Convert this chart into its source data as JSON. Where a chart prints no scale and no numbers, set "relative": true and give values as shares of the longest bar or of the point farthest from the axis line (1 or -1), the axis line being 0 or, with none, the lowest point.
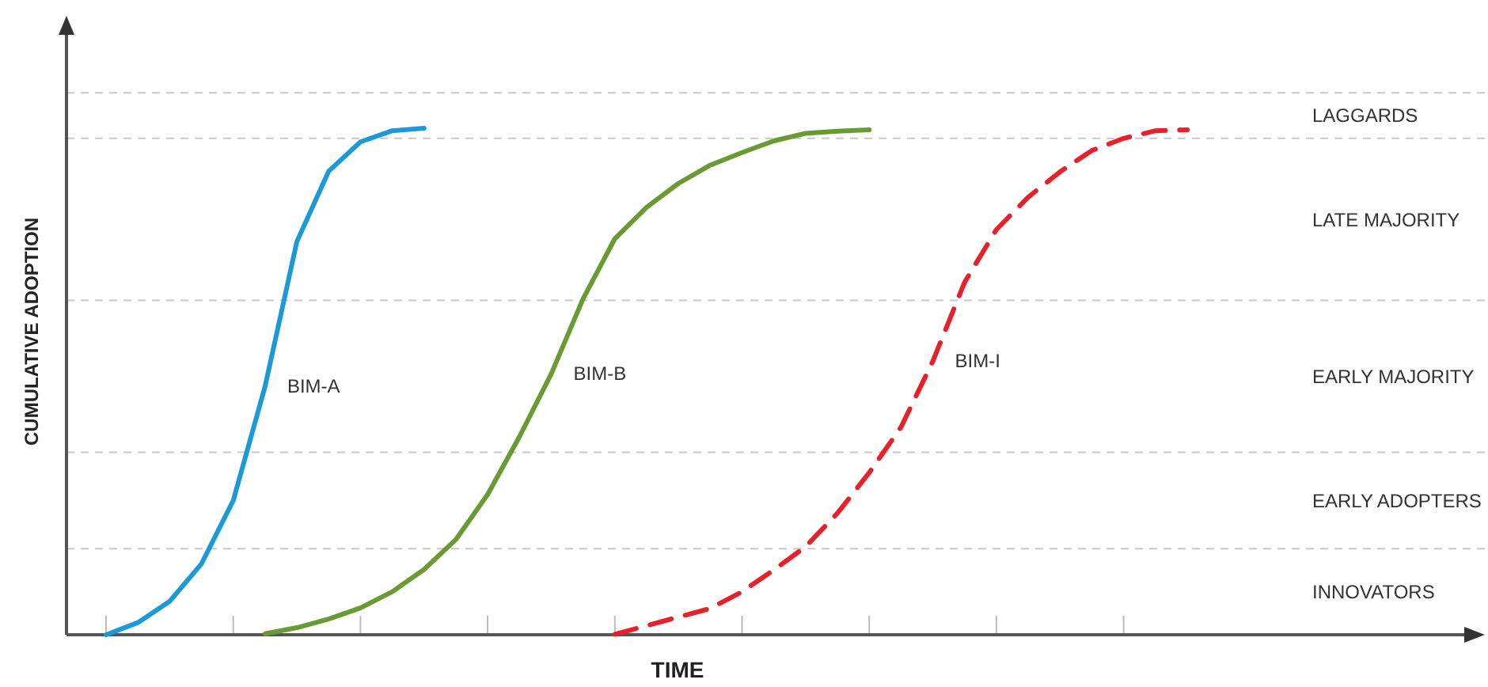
{
  "chart_data": {
    "type": "line",
    "relative": true,
    "xlabel": "TIME",
    "ylabel": "CUMULATIVE ADOPTION",
    "categories": [
      null,
      null,
      null,
      null,
      null,
      null,
      null,
      null,
      null,
      null,
      null,
      null,
      null,
      null,
      null,
      null,
      null,
      null,
      null,
      null,
      null,
      null,
      null,
      null,
      null,
      null,
      null,
      null,
      null,
      null,
      null,
      null,
      null,
      null,
      null
    ],
    "series": [
      {
        "name": "BIM-A",
        "color": "#1a9ad6",
        "line_style": "solid",
        "values": [
          0,
          0.024,
          0.066,
          0.14,
          0.265,
          0.49,
          0.776,
          0.915,
          0.973,
          0.995,
          1.0,
          null,
          null,
          null,
          null,
          null,
          null,
          null,
          null,
          null,
          null,
          null,
          null,
          null,
          null,
          null,
          null,
          null,
          null,
          null,
          null,
          null,
          null,
          null,
          null
        ]
      },
      {
        "name": "BIM-B",
        "color": "#6a9a32",
        "line_style": "solid",
        "values": [
          null,
          null,
          null,
          null,
          null,
          0.002,
          0.014,
          0.031,
          0.053,
          0.085,
          0.129,
          0.188,
          0.277,
          0.391,
          0.515,
          0.663,
          0.782,
          0.844,
          0.891,
          0.927,
          0.952,
          0.975,
          0.99,
          0.994,
          0.997,
          null,
          null,
          null,
          null,
          null,
          null,
          null,
          null,
          null,
          null
        ]
      },
      {
        "name": "BIM-I",
        "color": "#e8202a",
        "line_style": "dashed",
        "values": [
          null,
          null,
          null,
          null,
          null,
          null,
          null,
          null,
          null,
          null,
          null,
          null,
          null,
          null,
          null,
          null,
          0.001,
          0.018,
          0.035,
          0.052,
          0.085,
          0.128,
          0.174,
          0.24,
          0.32,
          0.41,
          0.54,
          0.696,
          0.8,
          0.864,
          0.914,
          0.956,
          0.98,
          0.995,
          0.997
        ]
      }
    ],
    "ref_lines": [
      {
        "axis": "y",
        "value": 0.17,
        "color": "#c8c8c8",
        "line_style": "dashed"
      },
      {
        "axis": "y",
        "value": 0.36,
        "color": "#c8c8c8",
        "line_style": "dashed"
      },
      {
        "axis": "y",
        "value": 0.66,
        "color": "#c8c8c8",
        "line_style": "dashed"
      },
      {
        "axis": "y",
        "value": 0.98,
        "color": "#c8c8c8",
        "line_style": "dashed"
      },
      {
        "axis": "y",
        "value": 1.07,
        "color": "#c8c8c8",
        "line_style": "dashed"
      }
    ],
    "annotations": [
      "INNOVATORS",
      "EARLY ADOPTERS",
      "EARLY MAJORITY",
      "LATE MAJORITY",
      "LAGGARDS"
    ]
  }
}
